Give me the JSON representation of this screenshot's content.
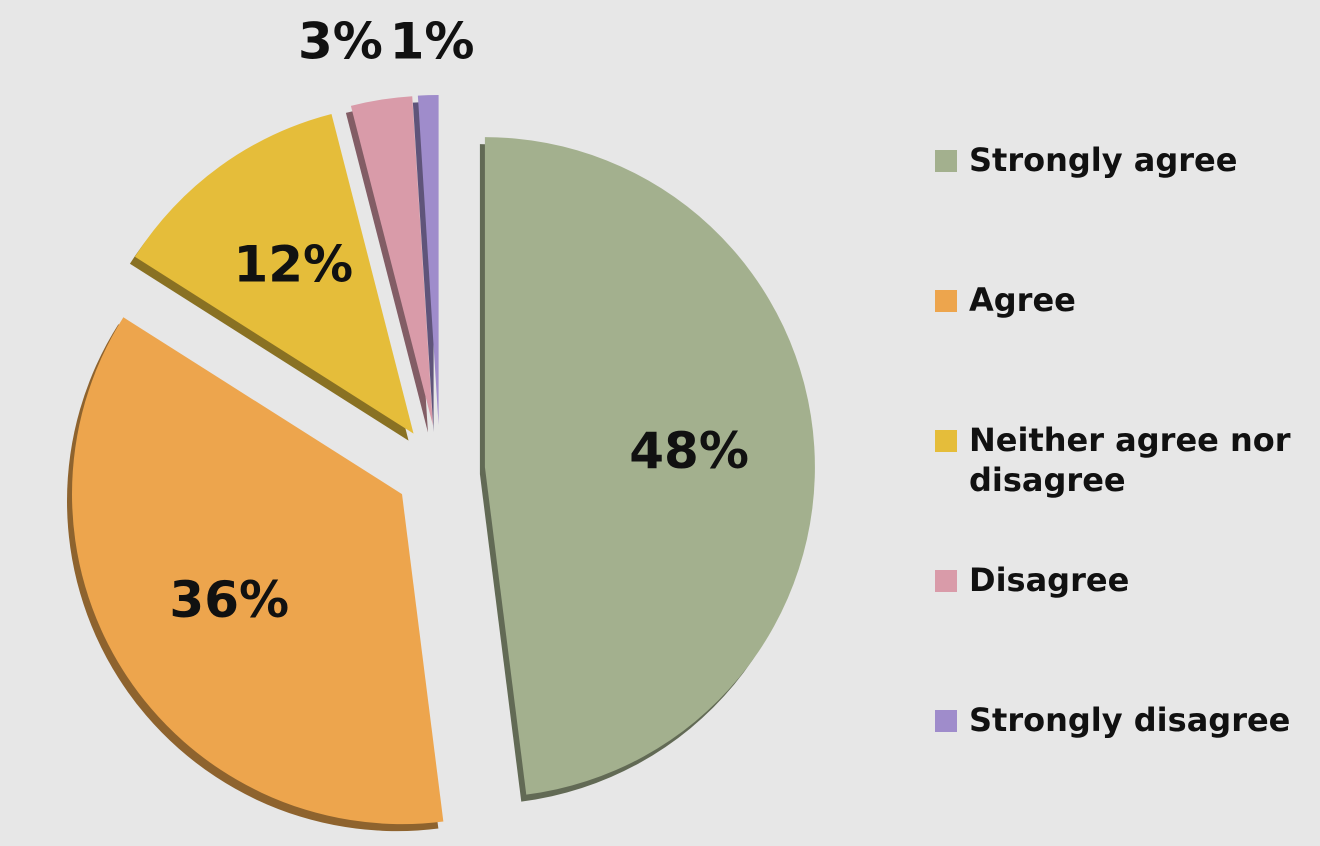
{
  "chart_data": {
    "type": "pie",
    "categories": [
      "Strongly agree",
      "Agree",
      "Neither agree nor disagree",
      "Disagree",
      "Strongly disagree"
    ],
    "values": [
      48,
      36,
      12,
      3,
      1
    ],
    "value_labels": [
      "48%",
      "36%",
      "12%",
      "3%",
      "1%"
    ],
    "colors": [
      "#a3b08e",
      "#eda54d",
      "#e5bd3a",
      "#d99ba9",
      "#9f8ccb"
    ],
    "legend": "right"
  }
}
